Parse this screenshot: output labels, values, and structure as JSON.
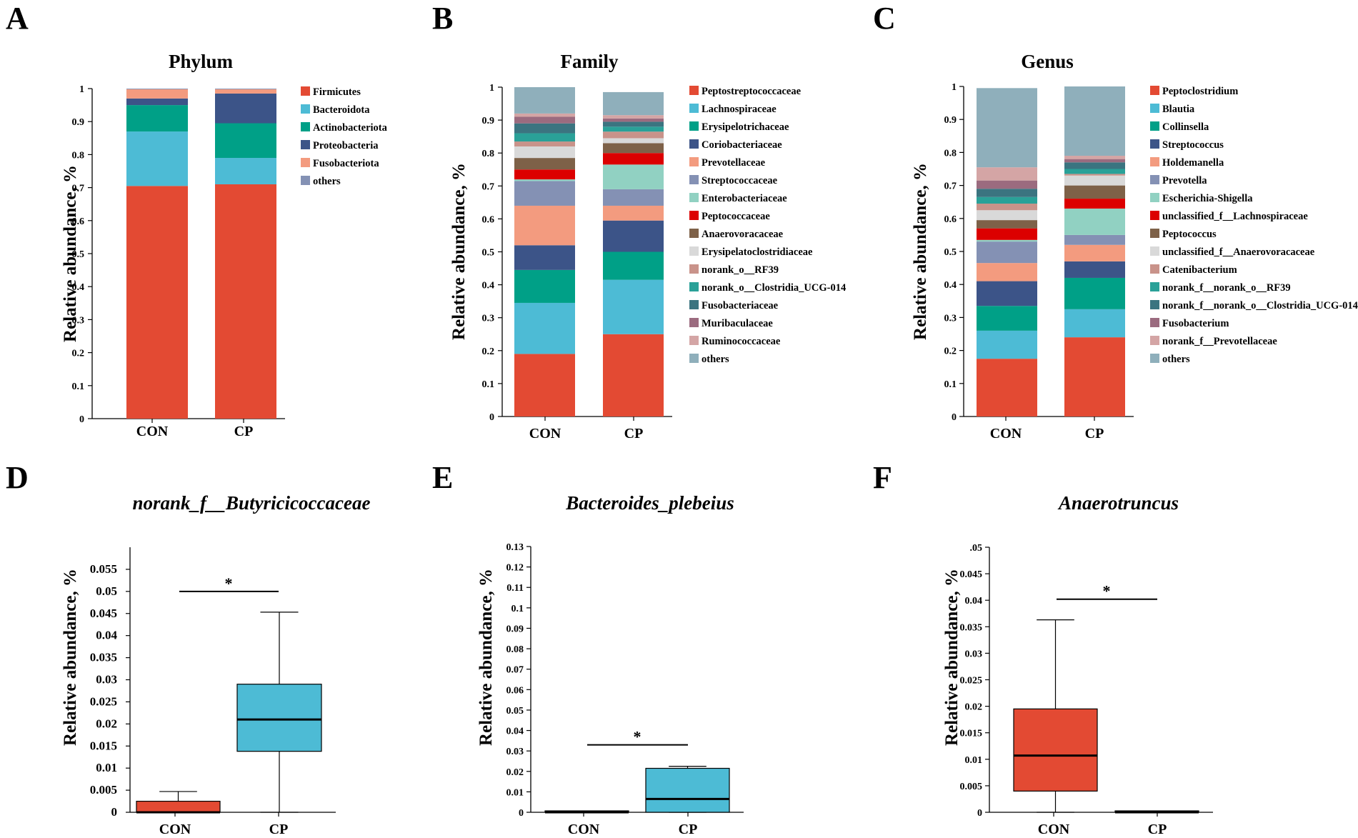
{
  "panels": [
    "A",
    "B",
    "C",
    "D",
    "E",
    "F"
  ],
  "colors": {
    "red": "#E34A33",
    "sky": "#4DBBD5",
    "teal": "#00A087",
    "navy": "#3C5488",
    "salmon": "#F39B7F",
    "lavender": "#8491B4",
    "mint": "#91D1C2",
    "scarlet": "#DC0000",
    "brown": "#7E6148",
    "silver": "#D9D9D9",
    "rose": "#C9938A",
    "cyan": "#2AA198",
    "steel": "#3B7480",
    "mauve": "#9B6B7F",
    "pink": "#D4A5A5",
    "slate": "#8FAFBB"
  },
  "chart_data": [
    {
      "panel": "A",
      "type": "bar",
      "stacked": true,
      "title": "Phylum",
      "ylabel": "Relative abundance, %",
      "ylim": [
        0,
        1
      ],
      "yticks": [
        "0",
        "0.1",
        "0.2",
        "0.3",
        "0.4",
        "0.5",
        "0.6",
        "0.7",
        "0.8",
        "0.9",
        "1"
      ],
      "categories": [
        "CON",
        "CP"
      ],
      "legend_position": "right",
      "series": [
        {
          "name": "Firmicutes",
          "color": "#E34A33",
          "values": [
            0.705,
            0.71
          ]
        },
        {
          "name": "Bacteroidota",
          "color": "#4DBBD5",
          "values": [
            0.165,
            0.08
          ]
        },
        {
          "name": "Actinobacteriota",
          "color": "#00A087",
          "values": [
            0.08,
            0.105
          ]
        },
        {
          "name": "Proteobacteria",
          "color": "#3C5488",
          "values": [
            0.02,
            0.09
          ]
        },
        {
          "name": "Fusobacteriota",
          "color": "#F39B7F",
          "values": [
            0.028,
            0.013
          ]
        },
        {
          "name": "others",
          "color": "#8491B4",
          "values": [
            0.002,
            0.002
          ]
        }
      ]
    },
    {
      "panel": "B",
      "type": "bar",
      "stacked": true,
      "title": "Family",
      "ylabel": "Relative abundance, %",
      "ylim": [
        0,
        1
      ],
      "yticks": [
        "0",
        "0.1",
        "0.2",
        "0.3",
        "0.4",
        "0.5",
        "0.6",
        "0.7",
        "0.8",
        "0.9",
        "1"
      ],
      "categories": [
        "CON",
        "CP"
      ],
      "legend_position": "right",
      "series": [
        {
          "name": "Peptostreptococcaceae",
          "color": "#E34A33",
          "values": [
            0.19,
            0.25
          ]
        },
        {
          "name": "Lachnospiraceae",
          "color": "#4DBBD5",
          "values": [
            0.155,
            0.165
          ]
        },
        {
          "name": "Erysipelotrichaceae",
          "color": "#00A087",
          "values": [
            0.1,
            0.085
          ]
        },
        {
          "name": "Coriobacteriaceae",
          "color": "#3C5488",
          "values": [
            0.075,
            0.095
          ]
        },
        {
          "name": "Prevotellaceae",
          "color": "#F39B7F",
          "values": [
            0.12,
            0.045
          ]
        },
        {
          "name": "Streptococcaceae",
          "color": "#8491B4",
          "values": [
            0.075,
            0.05
          ]
        },
        {
          "name": "Enterobacteriaceae",
          "color": "#91D1C2",
          "values": [
            0.005,
            0.075
          ]
        },
        {
          "name": "Peptococcaceae",
          "color": "#DC0000",
          "values": [
            0.03,
            0.035
          ]
        },
        {
          "name": "Anaerovoracaceae",
          "color": "#7E6148",
          "values": [
            0.035,
            0.03
          ]
        },
        {
          "name": "Erysipelatoclostridiaceae",
          "color": "#D9D9D9",
          "values": [
            0.035,
            0.015
          ]
        },
        {
          "name": "norank_o__RF39",
          "color": "#C9938A",
          "values": [
            0.015,
            0.02
          ]
        },
        {
          "name": "norank_o__Clostridia_UCG-014",
          "color": "#2AA198",
          "values": [
            0.025,
            0.015
          ]
        },
        {
          "name": "Fusobacteriaceae",
          "color": "#3B7480",
          "values": [
            0.03,
            0.015
          ]
        },
        {
          "name": "Muribaculaceae",
          "color": "#9B6B7F",
          "values": [
            0.02,
            0.01
          ]
        },
        {
          "name": "Ruminococcaceae",
          "color": "#D4A5A5",
          "values": [
            0.01,
            0.01
          ]
        },
        {
          "name": "others",
          "color": "#8FAFBB",
          "values": [
            0.08,
            0.07
          ]
        }
      ]
    },
    {
      "panel": "C",
      "type": "bar",
      "stacked": true,
      "title": "Genus",
      "ylabel": "Relative abundance, %",
      "ylim": [
        0,
        1
      ],
      "yticks": [
        "0",
        "0.1",
        "0.2",
        "0.3",
        "0.4",
        "0.5",
        "0.6",
        "0.7",
        "0.8",
        "0.9",
        "1"
      ],
      "categories": [
        "CON",
        "CP"
      ],
      "legend_position": "right",
      "series": [
        {
          "name": "Peptoclostridium",
          "color": "#E34A33",
          "values": [
            0.175,
            0.24
          ]
        },
        {
          "name": "Blautia",
          "color": "#4DBBD5",
          "values": [
            0.085,
            0.085
          ]
        },
        {
          "name": "Collinsella",
          "color": "#00A087",
          "values": [
            0.075,
            0.095
          ]
        },
        {
          "name": "Streptococcus",
          "color": "#3C5488",
          "values": [
            0.075,
            0.05
          ]
        },
        {
          "name": "Holdemanella",
          "color": "#F39B7F",
          "values": [
            0.055,
            0.05
          ]
        },
        {
          "name": "Prevotella",
          "color": "#8491B4",
          "values": [
            0.065,
            0.03
          ]
        },
        {
          "name": "Escherichia-Shigella",
          "color": "#91D1C2",
          "values": [
            0.005,
            0.08
          ]
        },
        {
          "name": "unclassified_f__Lachnospiraceae",
          "color": "#DC0000",
          "values": [
            0.035,
            0.03
          ]
        },
        {
          "name": "Peptococcus",
          "color": "#7E6148",
          "values": [
            0.025,
            0.04
          ]
        },
        {
          "name": "unclassified_f__Anaerovoracaceae",
          "color": "#D9D9D9",
          "values": [
            0.03,
            0.03
          ]
        },
        {
          "name": "Catenibacterium",
          "color": "#C9938A",
          "values": [
            0.02,
            0.005
          ]
        },
        {
          "name": "norank_f__norank_o__RF39",
          "color": "#2AA198",
          "values": [
            0.02,
            0.015
          ]
        },
        {
          "name": "norank_f__norank_o__Clostridia_UCG-014",
          "color": "#3B7480",
          "values": [
            0.025,
            0.02
          ]
        },
        {
          "name": "Fusobacterium",
          "color": "#9B6B7F",
          "values": [
            0.025,
            0.01
          ]
        },
        {
          "name": "norank_f__Prevotellaceae",
          "color": "#D4A5A5",
          "values": [
            0.04,
            0.01
          ]
        },
        {
          "name": "others",
          "color": "#8FAFBB",
          "values": [
            0.24,
            0.21
          ]
        }
      ]
    },
    {
      "panel": "D",
      "type": "box",
      "title": "norank_f__Butyricicoccaceae",
      "ylabel": "Relative abundance, %",
      "ylim": [
        0,
        0.06
      ],
      "yticks": [
        "0",
        "0.005",
        "0.01",
        "0.015",
        "0.02",
        "0.025",
        "0.03",
        "0.035",
        "0.04",
        "0.045",
        "0.05",
        "0.055"
      ],
      "categories": [
        "CON",
        "CP"
      ],
      "boxes": [
        {
          "name": "CON",
          "color": "#E34A33",
          "min": 0,
          "q1": 0,
          "median": 0,
          "q3": 0.0025,
          "max": 0.0047
        },
        {
          "name": "CP",
          "color": "#4DBBD5",
          "min": 0,
          "q1": 0.0138,
          "median": 0.021,
          "q3": 0.029,
          "max": 0.0453
        }
      ],
      "significance": {
        "label": "*",
        "y": 0.05
      }
    },
    {
      "panel": "E",
      "type": "box",
      "title": "Bacteroides_plebeius",
      "ylabel": "Relative abundance, %",
      "ylim": [
        0,
        0.13
      ],
      "yticks": [
        "0",
        "0.01",
        "0.02",
        "0.03",
        "0.04",
        "0.05",
        "0.06",
        "0.07",
        "0.08",
        "0.09",
        "0.1",
        "0.11",
        "0.12",
        "0.13"
      ],
      "categories": [
        "CON",
        "CP"
      ],
      "boxes": [
        {
          "name": "CON",
          "color": "#E34A33",
          "min": 0,
          "q1": 0,
          "median": 0,
          "q3": 0,
          "max": 0
        },
        {
          "name": "CP",
          "color": "#4DBBD5",
          "min": 0,
          "q1": 0,
          "median": 0.0065,
          "q3": 0.0215,
          "max": 0.0225
        }
      ],
      "significance": {
        "label": "*",
        "y": 0.033
      }
    },
    {
      "panel": "F",
      "type": "box",
      "title": "Anaerotruncus",
      "ylabel": "Relative abundance, %",
      "ylim": [
        0,
        0.05
      ],
      "yticks": [
        "0",
        "0.005",
        "0.01",
        "0.015",
        "0.02",
        "0.025",
        "0.03",
        "0.035",
        "0.04",
        "0.045",
        ".05"
      ],
      "categories": [
        "CON",
        "CP"
      ],
      "boxes": [
        {
          "name": "CON",
          "color": "#E34A33",
          "min": 0,
          "q1": 0.004,
          "median": 0.0107,
          "q3": 0.0195,
          "max": 0.0363
        },
        {
          "name": "CP",
          "color": "#4DBBD5",
          "min": 0,
          "q1": 0,
          "median": 0,
          "q3": 0,
          "max": 0
        }
      ],
      "significance": {
        "label": "*",
        "y": 0.0402
      }
    }
  ]
}
